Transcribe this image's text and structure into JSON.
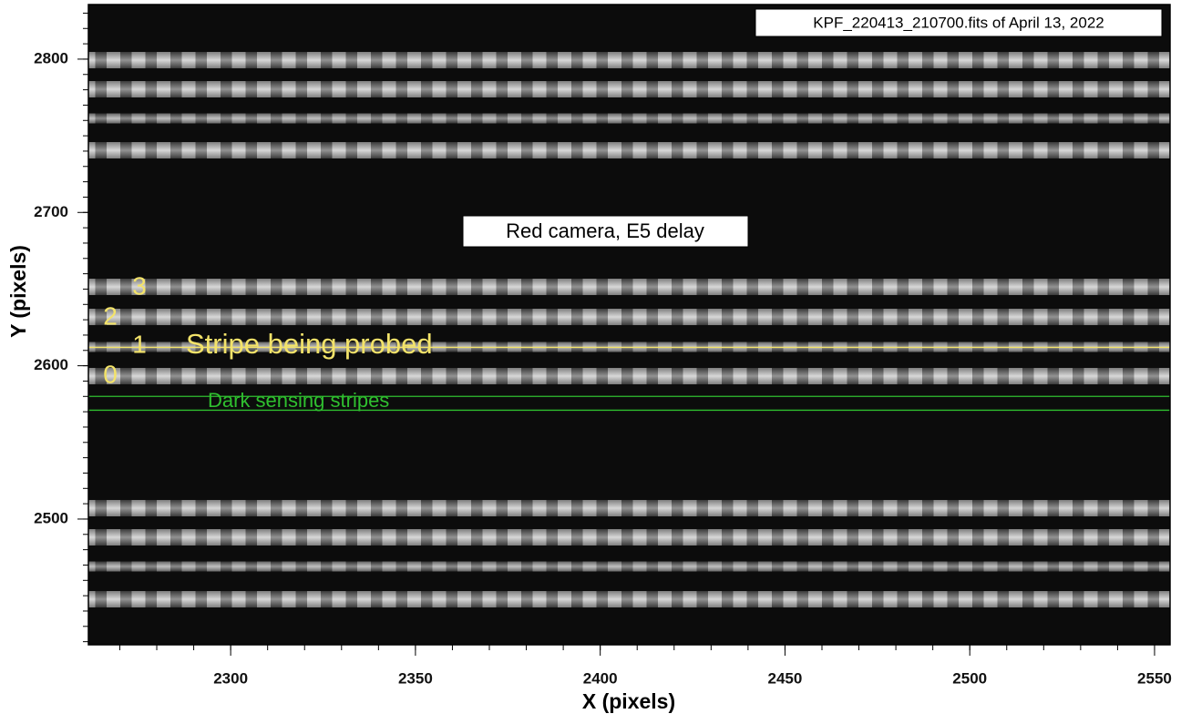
{
  "chart_data": {
    "type": "image",
    "title": "KPF_220413_210700.fits of April 13, 2022",
    "subtitle": "Red camera, E5 delay",
    "x_label": "X (pixels)",
    "y_label": "Y (pixels)",
    "xlim": [
      2261.5,
      2554.2
    ],
    "xticks": [
      2300,
      2350,
      2400,
      2450,
      2500,
      2550
    ],
    "ylim": [
      2418,
      2835.6
    ],
    "yticks": [
      2500,
      2600,
      2700,
      2800
    ],
    "hlines": [
      {
        "y": 2612,
        "color": "#f3e36a"
      },
      {
        "y": 2580,
        "color": "#2fbf2f"
      },
      {
        "y": 2571,
        "color": "#2fbf2f"
      }
    ],
    "annotations": [
      "3",
      "2",
      "1",
      "0",
      "Stripe being probed",
      "Dark sensing stripes"
    ]
  }
}
